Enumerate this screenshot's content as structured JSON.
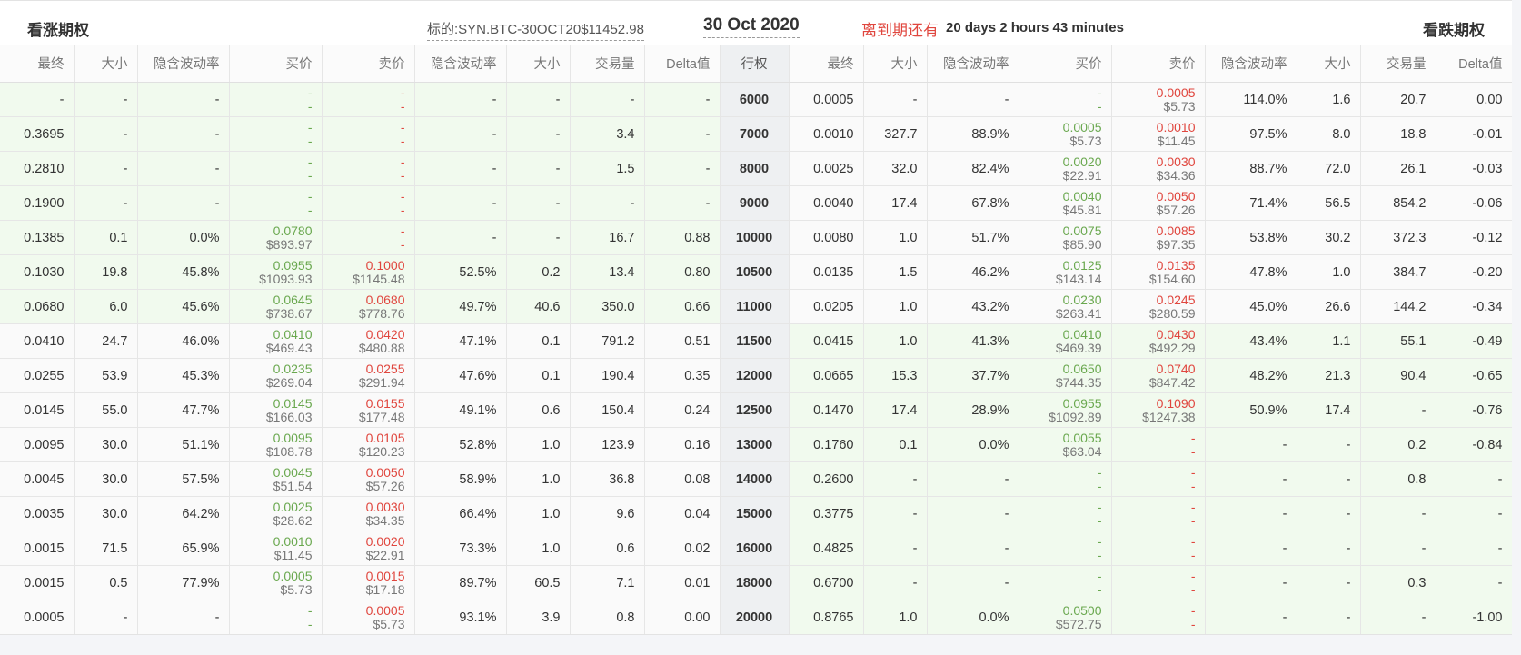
{
  "header": {
    "calls_title": "看涨期权",
    "underlying": "标的:SYN.BTC-30OCT20$11452.98",
    "expiry": "30 Oct 2020",
    "countdown_label": "离到期还有",
    "countdown_value": "20 days 2 hours 43 minutes",
    "puts_title": "看跌期权"
  },
  "columns": [
    "最终",
    "大小",
    "隐含波动率",
    "买价",
    "卖价",
    "隐含波动率",
    "大小",
    "交易量",
    "Delta值",
    "行权",
    "最终",
    "大小",
    "隐含波动率",
    "买价",
    "卖价",
    "隐含波动率",
    "大小",
    "交易量",
    "Delta值"
  ],
  "colors": {
    "bid": "#6aa84f",
    "ask": "#e0463e",
    "itm_bg": "#f1faee",
    "strike_bg": "#eef0f2"
  },
  "rows": [
    {
      "strike": "6000",
      "call": {
        "last": "-",
        "size": "-",
        "iv": "-",
        "bid": [
          "-",
          "-"
        ],
        "ask": [
          "-",
          "-"
        ],
        "iv2": "-",
        "size2": "-",
        "volume": "-",
        "delta": "-"
      },
      "put": {
        "last": "0.0005",
        "size": "-",
        "iv": "-",
        "bid": [
          "-",
          "-"
        ],
        "ask": [
          "0.0005",
          "$5.73"
        ],
        "iv2": "114.0%",
        "size2": "1.6",
        "volume": "20.7",
        "delta": "0.00"
      }
    },
    {
      "strike": "7000",
      "call": {
        "last": "0.3695",
        "size": "-",
        "iv": "-",
        "bid": [
          "-",
          "-"
        ],
        "ask": [
          "-",
          "-"
        ],
        "iv2": "-",
        "size2": "-",
        "volume": "3.4",
        "delta": "-"
      },
      "put": {
        "last": "0.0010",
        "size": "327.7",
        "iv": "88.9%",
        "bid": [
          "0.0005",
          "$5.73"
        ],
        "ask": [
          "0.0010",
          "$11.45"
        ],
        "iv2": "97.5%",
        "size2": "8.0",
        "volume": "18.8",
        "delta": "-0.01"
      }
    },
    {
      "strike": "8000",
      "call": {
        "last": "0.2810",
        "size": "-",
        "iv": "-",
        "bid": [
          "-",
          "-"
        ],
        "ask": [
          "-",
          "-"
        ],
        "iv2": "-",
        "size2": "-",
        "volume": "1.5",
        "delta": "-"
      },
      "put": {
        "last": "0.0025",
        "size": "32.0",
        "iv": "82.4%",
        "bid": [
          "0.0020",
          "$22.91"
        ],
        "ask": [
          "0.0030",
          "$34.36"
        ],
        "iv2": "88.7%",
        "size2": "72.0",
        "volume": "26.1",
        "delta": "-0.03"
      }
    },
    {
      "strike": "9000",
      "call": {
        "last": "0.1900",
        "size": "-",
        "iv": "-",
        "bid": [
          "-",
          "-"
        ],
        "ask": [
          "-",
          "-"
        ],
        "iv2": "-",
        "size2": "-",
        "volume": "-",
        "delta": "-"
      },
      "put": {
        "last": "0.0040",
        "size": "17.4",
        "iv": "67.8%",
        "bid": [
          "0.0040",
          "$45.81"
        ],
        "ask": [
          "0.0050",
          "$57.26"
        ],
        "iv2": "71.4%",
        "size2": "56.5",
        "volume": "854.2",
        "delta": "-0.06"
      }
    },
    {
      "strike": "10000",
      "call": {
        "last": "0.1385",
        "size": "0.1",
        "iv": "0.0%",
        "bid": [
          "0.0780",
          "$893.97"
        ],
        "ask": [
          "-",
          "-"
        ],
        "iv2": "-",
        "size2": "-",
        "volume": "16.7",
        "delta": "0.88"
      },
      "put": {
        "last": "0.0080",
        "size": "1.0",
        "iv": "51.7%",
        "bid": [
          "0.0075",
          "$85.90"
        ],
        "ask": [
          "0.0085",
          "$97.35"
        ],
        "iv2": "53.8%",
        "size2": "30.2",
        "volume": "372.3",
        "delta": "-0.12"
      }
    },
    {
      "strike": "10500",
      "call": {
        "last": "0.1030",
        "size": "19.8",
        "iv": "45.8%",
        "bid": [
          "0.0955",
          "$1093.93"
        ],
        "ask": [
          "0.1000",
          "$1145.48"
        ],
        "iv2": "52.5%",
        "size2": "0.2",
        "volume": "13.4",
        "delta": "0.80"
      },
      "put": {
        "last": "0.0135",
        "size": "1.5",
        "iv": "46.2%",
        "bid": [
          "0.0125",
          "$143.14"
        ],
        "ask": [
          "0.0135",
          "$154.60"
        ],
        "iv2": "47.8%",
        "size2": "1.0",
        "volume": "384.7",
        "delta": "-0.20"
      }
    },
    {
      "strike": "11000",
      "call": {
        "last": "0.0680",
        "size": "6.0",
        "iv": "45.6%",
        "bid": [
          "0.0645",
          "$738.67"
        ],
        "ask": [
          "0.0680",
          "$778.76"
        ],
        "iv2": "49.7%",
        "size2": "40.6",
        "volume": "350.0",
        "delta": "0.66"
      },
      "put": {
        "last": "0.0205",
        "size": "1.0",
        "iv": "43.2%",
        "bid": [
          "0.0230",
          "$263.41"
        ],
        "ask": [
          "0.0245",
          "$280.59"
        ],
        "iv2": "45.0%",
        "size2": "26.6",
        "volume": "144.2",
        "delta": "-0.34"
      }
    },
    {
      "strike": "11500",
      "call": {
        "last": "0.0410",
        "size": "24.7",
        "iv": "46.0%",
        "bid": [
          "0.0410",
          "$469.43"
        ],
        "ask": [
          "0.0420",
          "$480.88"
        ],
        "iv2": "47.1%",
        "size2": "0.1",
        "volume": "791.2",
        "delta": "0.51"
      },
      "put": {
        "last": "0.0415",
        "size": "1.0",
        "iv": "41.3%",
        "bid": [
          "0.0410",
          "$469.39"
        ],
        "ask": [
          "0.0430",
          "$492.29"
        ],
        "iv2": "43.4%",
        "size2": "1.1",
        "volume": "55.1",
        "delta": "-0.49"
      }
    },
    {
      "strike": "12000",
      "call": {
        "last": "0.0255",
        "size": "53.9",
        "iv": "45.3%",
        "bid": [
          "0.0235",
          "$269.04"
        ],
        "ask": [
          "0.0255",
          "$291.94"
        ],
        "iv2": "47.6%",
        "size2": "0.1",
        "volume": "190.4",
        "delta": "0.35"
      },
      "put": {
        "last": "0.0665",
        "size": "15.3",
        "iv": "37.7%",
        "bid": [
          "0.0650",
          "$744.35"
        ],
        "ask": [
          "0.0740",
          "$847.42"
        ],
        "iv2": "48.2%",
        "size2": "21.3",
        "volume": "90.4",
        "delta": "-0.65"
      }
    },
    {
      "strike": "12500",
      "call": {
        "last": "0.0145",
        "size": "55.0",
        "iv": "47.7%",
        "bid": [
          "0.0145",
          "$166.03"
        ],
        "ask": [
          "0.0155",
          "$177.48"
        ],
        "iv2": "49.1%",
        "size2": "0.6",
        "volume": "150.4",
        "delta": "0.24"
      },
      "put": {
        "last": "0.1470",
        "size": "17.4",
        "iv": "28.9%",
        "bid": [
          "0.0955",
          "$1092.89"
        ],
        "ask": [
          "0.1090",
          "$1247.38"
        ],
        "iv2": "50.9%",
        "size2": "17.4",
        "volume": "-",
        "delta": "-0.76"
      }
    },
    {
      "strike": "13000",
      "call": {
        "last": "0.0095",
        "size": "30.0",
        "iv": "51.1%",
        "bid": [
          "0.0095",
          "$108.78"
        ],
        "ask": [
          "0.0105",
          "$120.23"
        ],
        "iv2": "52.8%",
        "size2": "1.0",
        "volume": "123.9",
        "delta": "0.16"
      },
      "put": {
        "last": "0.1760",
        "size": "0.1",
        "iv": "0.0%",
        "bid": [
          "0.0055",
          "$63.04"
        ],
        "ask": [
          "-",
          "-"
        ],
        "iv2": "-",
        "size2": "-",
        "volume": "0.2",
        "delta": "-0.84"
      }
    },
    {
      "strike": "14000",
      "call": {
        "last": "0.0045",
        "size": "30.0",
        "iv": "57.5%",
        "bid": [
          "0.0045",
          "$51.54"
        ],
        "ask": [
          "0.0050",
          "$57.26"
        ],
        "iv2": "58.9%",
        "size2": "1.0",
        "volume": "36.8",
        "delta": "0.08"
      },
      "put": {
        "last": "0.2600",
        "size": "-",
        "iv": "-",
        "bid": [
          "-",
          "-"
        ],
        "ask": [
          "-",
          "-"
        ],
        "iv2": "-",
        "size2": "-",
        "volume": "0.8",
        "delta": "-"
      }
    },
    {
      "strike": "15000",
      "call": {
        "last": "0.0035",
        "size": "30.0",
        "iv": "64.2%",
        "bid": [
          "0.0025",
          "$28.62"
        ],
        "ask": [
          "0.0030",
          "$34.35"
        ],
        "iv2": "66.4%",
        "size2": "1.0",
        "volume": "9.6",
        "delta": "0.04"
      },
      "put": {
        "last": "0.3775",
        "size": "-",
        "iv": "-",
        "bid": [
          "-",
          "-"
        ],
        "ask": [
          "-",
          "-"
        ],
        "iv2": "-",
        "size2": "-",
        "volume": "-",
        "delta": "-"
      }
    },
    {
      "strike": "16000",
      "call": {
        "last": "0.0015",
        "size": "71.5",
        "iv": "65.9%",
        "bid": [
          "0.0010",
          "$11.45"
        ],
        "ask": [
          "0.0020",
          "$22.91"
        ],
        "iv2": "73.3%",
        "size2": "1.0",
        "volume": "0.6",
        "delta": "0.02"
      },
      "put": {
        "last": "0.4825",
        "size": "-",
        "iv": "-",
        "bid": [
          "-",
          "-"
        ],
        "ask": [
          "-",
          "-"
        ],
        "iv2": "-",
        "size2": "-",
        "volume": "-",
        "delta": "-"
      }
    },
    {
      "strike": "18000",
      "call": {
        "last": "0.0015",
        "size": "0.5",
        "iv": "77.9%",
        "bid": [
          "0.0005",
          "$5.73"
        ],
        "ask": [
          "0.0015",
          "$17.18"
        ],
        "iv2": "89.7%",
        "size2": "60.5",
        "volume": "7.1",
        "delta": "0.01"
      },
      "put": {
        "last": "0.6700",
        "size": "-",
        "iv": "-",
        "bid": [
          "-",
          "-"
        ],
        "ask": [
          "-",
          "-"
        ],
        "iv2": "-",
        "size2": "-",
        "volume": "0.3",
        "delta": "-"
      }
    },
    {
      "strike": "20000",
      "call": {
        "last": "0.0005",
        "size": "-",
        "iv": "-",
        "bid": [
          "-",
          "-"
        ],
        "ask": [
          "0.0005",
          "$5.73"
        ],
        "iv2": "93.1%",
        "size2": "3.9",
        "volume": "0.8",
        "delta": "0.00"
      },
      "put": {
        "last": "0.8765",
        "size": "1.0",
        "iv": "0.0%",
        "bid": [
          "0.0500",
          "$572.75"
        ],
        "ask": [
          "-",
          "-"
        ],
        "iv2": "-",
        "size2": "-",
        "volume": "-",
        "delta": "-1.00"
      }
    }
  ]
}
